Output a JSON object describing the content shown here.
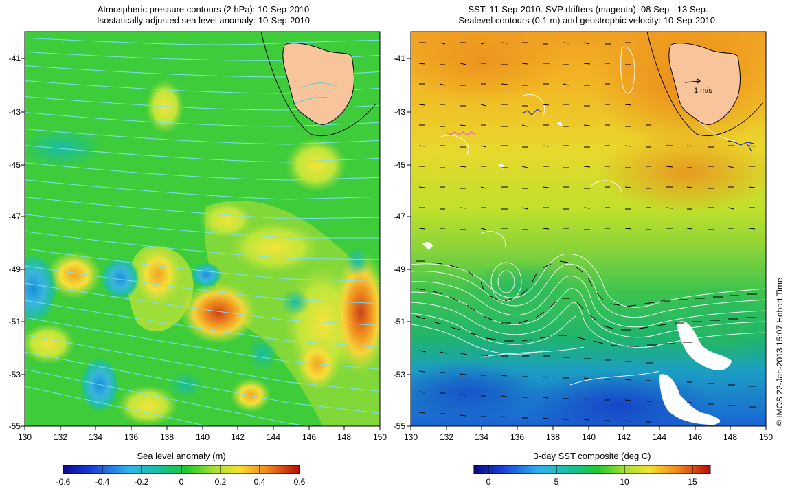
{
  "left_panel": {
    "title_line1": "Atmospheric pressure contours (2 hPa): 10-Sep-2010",
    "title_line2": "Isostatically adjusted sea level anomaly: 10-Sep-2010",
    "y_ticks": [
      "-41",
      "-43",
      "-45",
      "-47",
      "-49",
      "-51",
      "-53",
      "-55"
    ],
    "x_ticks": [
      "130",
      "132",
      "134",
      "136",
      "138",
      "140",
      "142",
      "144",
      "146",
      "148",
      "150"
    ],
    "colorbar_label": "Sea level anomaly (m)",
    "colorbar_ticks": [
      "-0.6",
      "-0.4",
      "-0.2",
      "0",
      "0.2",
      "0.4",
      "0.6"
    ],
    "colors": {
      "contour": "#7fe0f0",
      "land": "#f8c49c"
    }
  },
  "right_panel": {
    "title_line1": "SST: 11-Sep-2010. SVP drifters (magenta): 08 Sep - 13 Sep.",
    "title_line2": "Sealevel contours (0.1 m) and geostrophic velocity: 10-Sep-2010.",
    "y_ticks": [
      "-41",
      "-43",
      "-45",
      "-47",
      "-49",
      "-51",
      "-53",
      "-55"
    ],
    "x_ticks": [
      "130",
      "132",
      "134",
      "136",
      "138",
      "140",
      "142",
      "144",
      "146",
      "148",
      "150"
    ],
    "velocity_scale_label": "1 m/s",
    "colorbar_label": "3-day SST composite (deg C)",
    "colorbar_ticks": [
      "0",
      "5",
      "10",
      "15"
    ],
    "colors": {
      "contour": "#ffffff",
      "land": "#f8c49c"
    }
  },
  "credit": "© IMOS 22-Jan-2013 15:07 Hobart Time"
}
